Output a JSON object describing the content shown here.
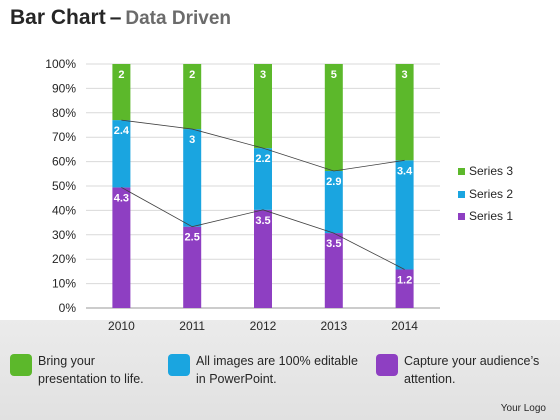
{
  "title": {
    "main": "Bar Chart",
    "dash": "–",
    "sub": "Data Driven"
  },
  "chart_data": {
    "type": "bar",
    "stacked": true,
    "percent_stacked": true,
    "categories": [
      "2010",
      "2011",
      "2012",
      "2013",
      "2014"
    ],
    "series": [
      {
        "name": "Series 1",
        "values": [
          4.3,
          2.5,
          3.5,
          3.5,
          1.2
        ],
        "color": "#8e3fc2"
      },
      {
        "name": "Series 2",
        "values": [
          2.4,
          3,
          2.2,
          2.9,
          3.4
        ],
        "color": "#1aa5e0"
      },
      {
        "name": "Series 3",
        "values": [
          2,
          2,
          3,
          5,
          3
        ],
        "color": "#5cb82b"
      }
    ],
    "y_ticks": [
      "0%",
      "10%",
      "20%",
      "30%",
      "40%",
      "50%",
      "60%",
      "70%",
      "80%",
      "90%",
      "100%"
    ],
    "ylim": [
      0,
      100
    ],
    "grid": true,
    "series_lines": true,
    "legend_position": "right"
  },
  "bottom_items": [
    {
      "text": "Bring your presentation to life.",
      "color": "#5cb82b"
    },
    {
      "text": "All images are 100% editable in PowerPoint.",
      "color": "#1aa5e0"
    },
    {
      "text": "Capture your audience’s attention.",
      "color": "#8e3fc2"
    }
  ],
  "logo": "Your Logo"
}
